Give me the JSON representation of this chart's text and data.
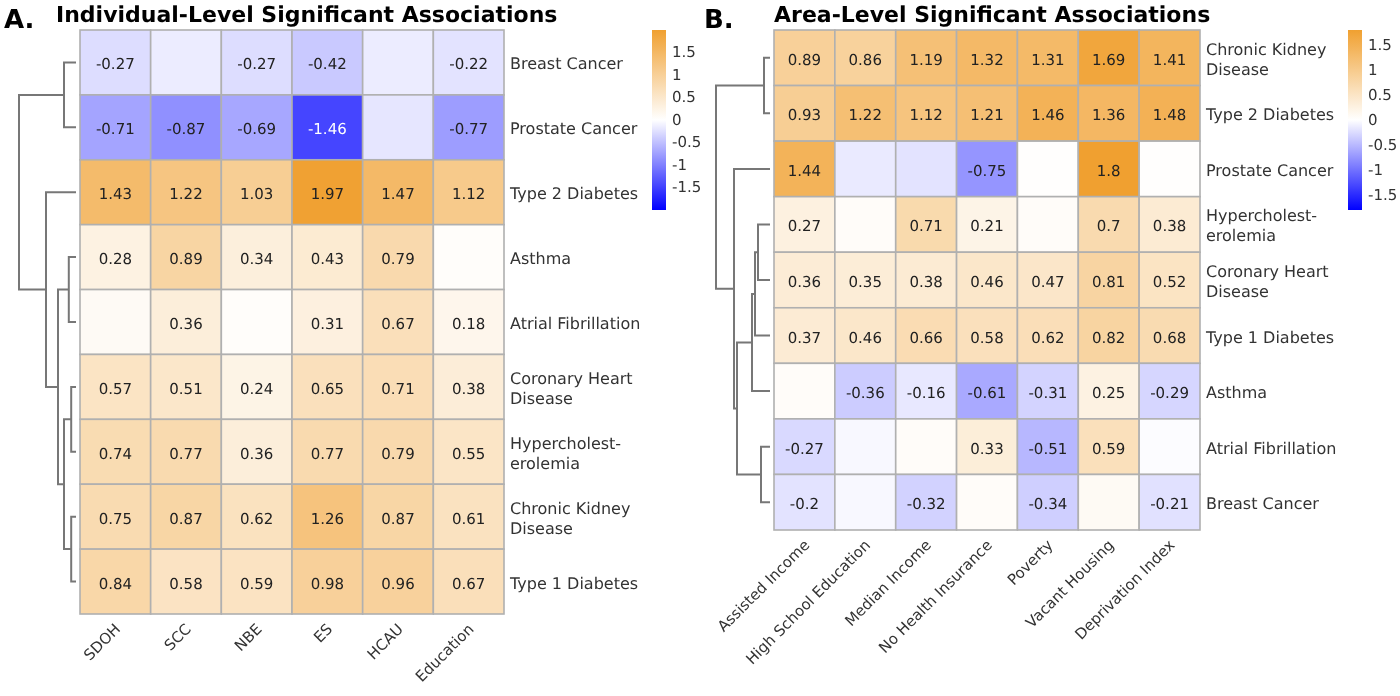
{
  "chart_data": [
    {
      "type": "heatmap",
      "title": "Individual-Level Significant Associations",
      "annotations": [
        "A."
      ],
      "categories": [
        "SDOH",
        "SCC",
        "NBE",
        "ES",
        "HCAU",
        "Education"
      ],
      "y_categories": [
        "Breast Cancer",
        "Prostate Cancer",
        "Type 2 Diabetes",
        "Asthma",
        "Atrial Fibrillation",
        "Coronary Heart Disease",
        "Hypercholest-erolemia",
        "Chronic Kidney Disease",
        "Type 1 Diabetes"
      ],
      "cells": [
        [
          -0.27,
          -0.15,
          -0.27,
          -0.42,
          -0.15,
          -0.22
        ],
        [
          -0.71,
          -0.87,
          -0.69,
          -1.46,
          -0.2,
          -0.77
        ],
        [
          1.43,
          1.22,
          1.03,
          1.97,
          1.47,
          1.12
        ],
        [
          0.28,
          0.89,
          0.34,
          0.43,
          0.79,
          0.05
        ],
        [
          0.1,
          0.36,
          0.05,
          0.31,
          0.67,
          0.18
        ],
        [
          0.57,
          0.51,
          0.24,
          0.65,
          0.71,
          0.38
        ],
        [
          0.74,
          0.77,
          0.36,
          0.77,
          0.79,
          0.55
        ],
        [
          0.75,
          0.87,
          0.62,
          1.26,
          0.87,
          0.61
        ],
        [
          0.84,
          0.58,
          0.59,
          0.98,
          0.96,
          0.67
        ]
      ],
      "cell_labels": [
        [
          "-0.27",
          null,
          "-0.27",
          "-0.42",
          null,
          "-0.22"
        ],
        [
          "-0.71",
          "-0.87",
          "-0.69",
          "-1.46",
          null,
          "-0.77"
        ],
        [
          "1.43",
          "1.22",
          "1.03",
          "1.97",
          "1.47",
          "1.12"
        ],
        [
          "0.28",
          "0.89",
          "0.34",
          "0.43",
          "0.79",
          null
        ],
        [
          null,
          "0.36",
          null,
          "0.31",
          "0.67",
          "0.18"
        ],
        [
          "0.57",
          "0.51",
          "0.24",
          "0.65",
          "0.71",
          "0.38"
        ],
        [
          "0.74",
          "0.77",
          "0.36",
          "0.77",
          "0.79",
          "0.55"
        ],
        [
          "0.75",
          "0.87",
          "0.62",
          "1.26",
          "0.87",
          "0.61"
        ],
        [
          "0.84",
          "0.58",
          "0.59",
          "0.98",
          "0.96",
          "0.67"
        ]
      ],
      "clim": [
        -2,
        2
      ],
      "cticks": [
        -1.5,
        -1,
        -0.5,
        0,
        0.5,
        1,
        1.5
      ]
    },
    {
      "type": "heatmap",
      "title": "Area-Level Significant Associations",
      "annotations": [
        "B."
      ],
      "categories": [
        "Assisted Income",
        "High School Education",
        "Median Income",
        "No Health Insurance",
        "Poverty",
        "Vacant Housing",
        "Deprivation Index"
      ],
      "y_categories": [
        "Chronic Kidney Disease",
        "Type 2 Diabetes",
        "Prostate Cancer",
        "Hypercholest-erolemia",
        "Coronary Heart Disease",
        "Type 1 Diabetes",
        "Asthma",
        "Atrial Fibrillation",
        "Breast Cancer"
      ],
      "cells": [
        [
          0.89,
          0.86,
          1.19,
          1.32,
          1.31,
          1.69,
          1.41
        ],
        [
          0.93,
          1.22,
          1.12,
          1.21,
          1.46,
          1.36,
          1.48
        ],
        [
          1.44,
          -0.15,
          -0.2,
          -0.75,
          0.02,
          1.8,
          0.02
        ],
        [
          0.27,
          0.05,
          0.71,
          0.21,
          0.05,
          0.7,
          0.38
        ],
        [
          0.36,
          0.35,
          0.38,
          0.46,
          0.47,
          0.81,
          0.52
        ],
        [
          0.37,
          0.46,
          0.66,
          0.58,
          0.62,
          0.82,
          0.68
        ],
        [
          0.05,
          -0.36,
          -0.16,
          -0.61,
          -0.31,
          0.25,
          -0.29
        ],
        [
          -0.27,
          -0.05,
          0.05,
          0.33,
          -0.51,
          0.59,
          -0.02
        ],
        [
          -0.2,
          -0.05,
          -0.32,
          0.05,
          -0.34,
          0.1,
          -0.21
        ]
      ],
      "cell_labels": [
        [
          "0.89",
          "0.86",
          "1.19",
          "1.32",
          "1.31",
          "1.69",
          "1.41"
        ],
        [
          "0.93",
          "1.22",
          "1.12",
          "1.21",
          "1.46",
          "1.36",
          "1.48"
        ],
        [
          "1.44",
          null,
          null,
          "-0.75",
          null,
          "1.8",
          null
        ],
        [
          "0.27",
          null,
          "0.71",
          "0.21",
          null,
          "0.7",
          "0.38"
        ],
        [
          "0.36",
          "0.35",
          "0.38",
          "0.46",
          "0.47",
          "0.81",
          "0.52"
        ],
        [
          "0.37",
          "0.46",
          "0.66",
          "0.58",
          "0.62",
          "0.82",
          "0.68"
        ],
        [
          null,
          "-0.36",
          "-0.16",
          "-0.61",
          "-0.31",
          "0.25",
          "-0.29"
        ],
        [
          "-0.27",
          null,
          null,
          "0.33",
          "-0.51",
          "0.59",
          null
        ],
        [
          "-0.2",
          null,
          "-0.32",
          null,
          "-0.34",
          null,
          "-0.21"
        ]
      ],
      "clim": [
        -1.8,
        1.8
      ],
      "cticks": [
        -1.5,
        -1,
        -0.5,
        0,
        0.5,
        1,
        1.5
      ]
    }
  ]
}
